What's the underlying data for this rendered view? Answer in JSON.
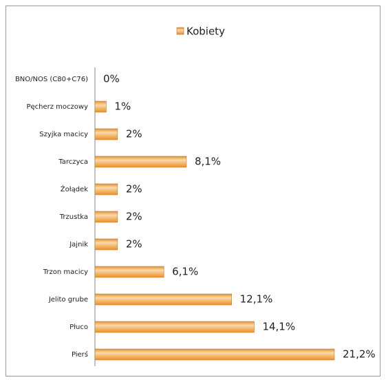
{
  "chart_data": {
    "type": "bar",
    "orientation": "horizontal",
    "categories": [
      "BNO/NOS (C80+C76)",
      "Pęcherz moczowy",
      "Szyjka macicy",
      "Tarczyca",
      "Żołądek",
      "Trzustka",
      "Jajnik",
      "Trzon macicy",
      "Jelito grube",
      "Płuco",
      "Pierś"
    ],
    "series": [
      {
        "name": "Kobiety",
        "color": "#e8922c",
        "values": [
          0,
          1,
          2,
          8.1,
          2,
          2,
          2,
          6.1,
          12.1,
          14.1,
          21.2
        ],
        "value_labels": [
          "0%",
          "1%",
          "2%",
          "8,1%",
          "2%",
          "2%",
          "2%",
          "6,1%",
          "12,1%",
          "14,1%",
          "21,2%"
        ]
      }
    ]
  }
}
